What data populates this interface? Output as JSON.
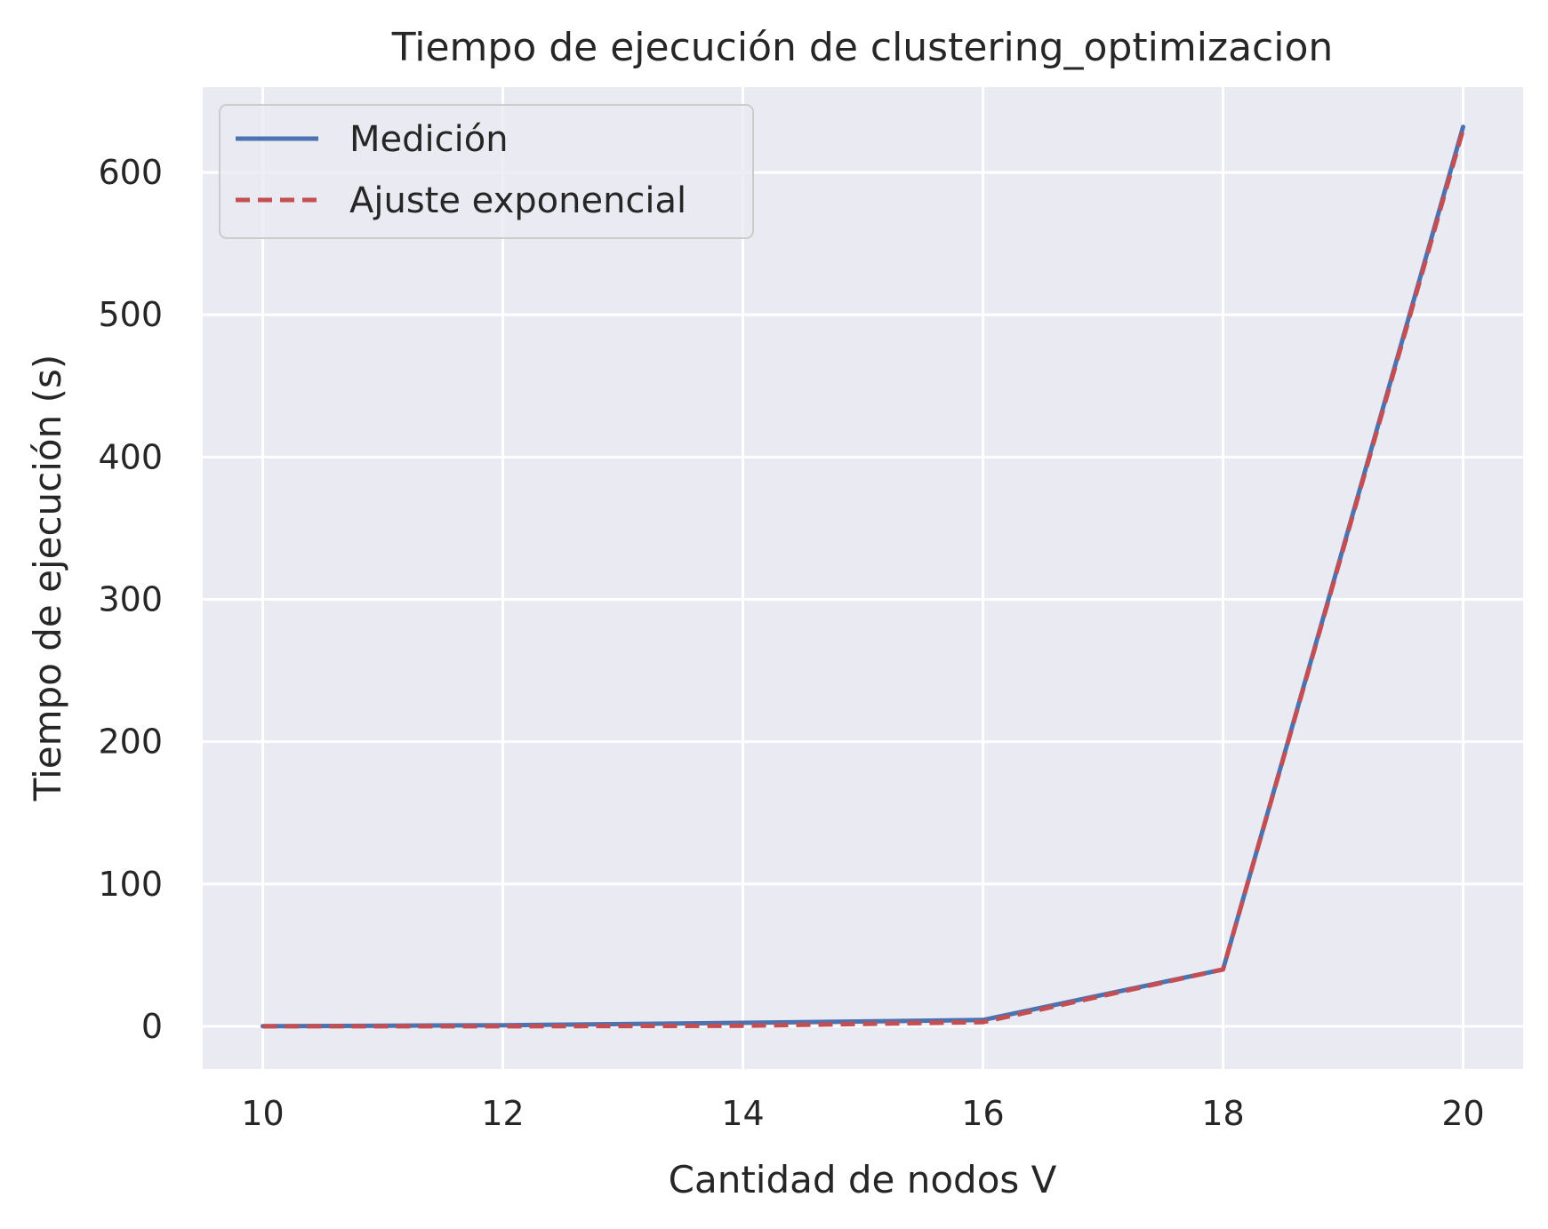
{
  "chart_data": {
    "type": "line",
    "title": "Tiempo de ejecución de clustering_optimizacion",
    "xlabel": "Cantidad de nodos V",
    "ylabel": "Tiempo de ejecución (s)",
    "x": [
      10,
      12,
      14,
      16,
      18,
      20
    ],
    "xlim": [
      9.5,
      20.5
    ],
    "ylim": [
      -30,
      660
    ],
    "xticks": [
      "10",
      "12",
      "14",
      "16",
      "18",
      "20"
    ],
    "yticks": [
      "0",
      "100",
      "200",
      "300",
      "400",
      "500",
      "600"
    ],
    "grid": true,
    "legend_position": "top-left",
    "background": "#eaeaf2",
    "series": [
      {
        "name": "Medición",
        "values": [
          0.1,
          0.8,
          2.5,
          4.5,
          40,
          632
        ],
        "color": "#4c72b0",
        "style": "solid"
      },
      {
        "name": "Ajuste exponencial",
        "values": [
          0.01,
          0.05,
          0.4,
          3.0,
          40,
          630
        ],
        "color": "#c44e52",
        "style": "dashed"
      }
    ]
  }
}
